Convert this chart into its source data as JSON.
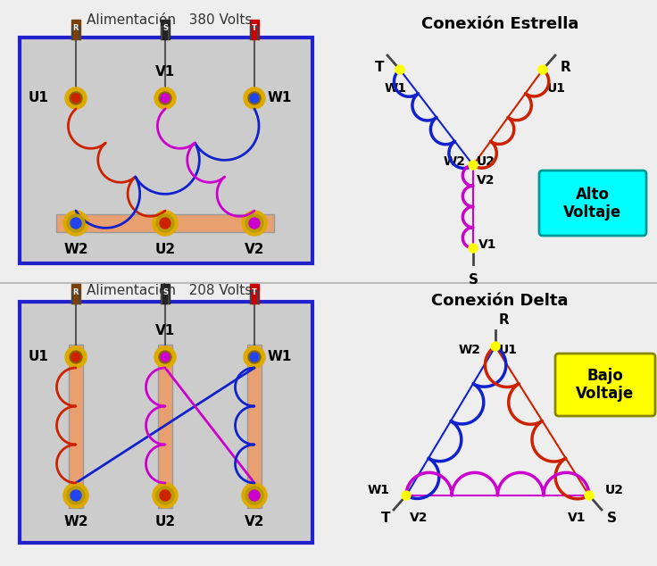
{
  "bg_color": "#eeeeee",
  "title_top": "Alimentación   380 Volts",
  "title_bottom": "Alimentación   208 Volts",
  "star_title": "Conexión Estrella",
  "delta_title": "Conexión Delta",
  "alto_voltaje": "Alto\nVoltaje",
  "bajo_voltaje": "Bajo\nVoltaje",
  "panel_bg": "#cccccc",
  "panel_border": "#2222cc",
  "busbar_color": "#e8a070",
  "term_gold": "#ddaa00",
  "term_gold2": "#bb9900",
  "coil_red": "#cc2200",
  "coil_blue": "#1122cc",
  "coil_magenta": "#cc00cc",
  "node_color": "#ffff00",
  "plug_brown": "#7B3F00",
  "plug_black": "#222222",
  "plug_red": "#cc0000",
  "text_color": "#111111"
}
